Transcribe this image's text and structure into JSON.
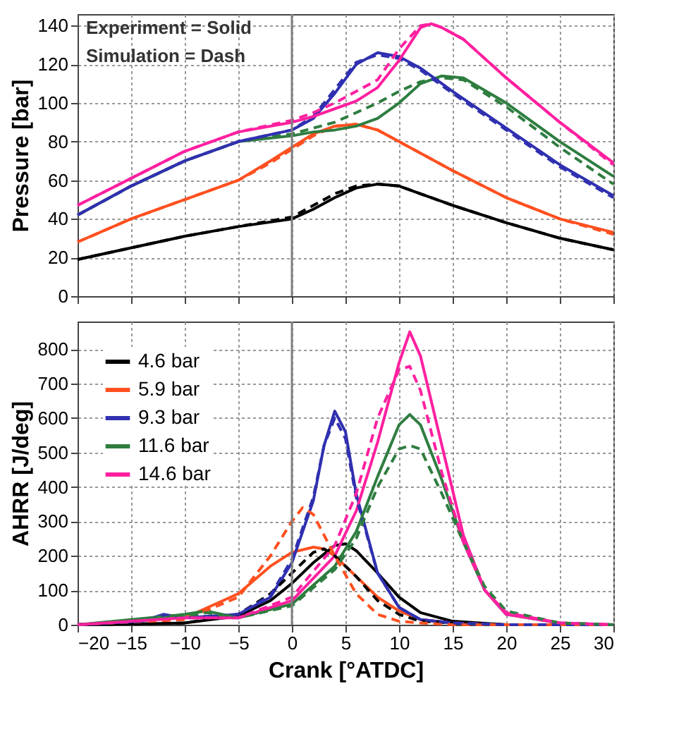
{
  "chart_data": [
    {
      "type": "line",
      "ylabel": "Pressure [bar]",
      "xlim": [
        -20,
        30
      ],
      "ylim": [
        0,
        146
      ],
      "xticks": [
        -20,
        -15,
        -10,
        -5,
        0,
        5,
        10,
        15,
        20,
        25,
        30
      ],
      "yticks": [
        0,
        20,
        40,
        60,
        80,
        100,
        120,
        140
      ],
      "grid": true,
      "tick_labels": "y",
      "legend": false,
      "annotations": [
        "Experiment = Solid",
        "Simulation = Dash"
      ],
      "ref_lines": [
        {
          "axis": "x",
          "value": 0,
          "color": "#808080"
        }
      ],
      "series": [
        {
          "color": "#000000",
          "line_style": "solid",
          "x": [
            -20,
            -15,
            -10,
            -5,
            0,
            2,
            4,
            6,
            8,
            10,
            12,
            15,
            20,
            25,
            30
          ],
          "values": [
            19,
            25,
            31,
            36,
            40,
            45,
            51,
            56,
            58,
            57,
            53,
            47,
            38,
            30,
            24
          ]
        },
        {
          "color": "#000000",
          "line_style": "dashed",
          "x": [
            -20,
            -15,
            -10,
            -5,
            0,
            2,
            4,
            6,
            8,
            10,
            12,
            15,
            20,
            25,
            30
          ],
          "values": [
            19,
            25,
            31,
            36,
            41,
            47,
            53,
            57,
            58,
            57,
            53,
            47,
            38,
            30,
            24
          ]
        },
        {
          "color": "#ff5020",
          "line_style": "solid",
          "x": [
            -20,
            -15,
            -10,
            -5,
            -2,
            0,
            2,
            4,
            6,
            8,
            10,
            12,
            15,
            20,
            25,
            30
          ],
          "values": [
            28,
            40,
            50,
            60,
            70,
            77,
            84,
            88,
            89,
            86,
            80,
            74,
            65,
            51,
            40,
            33
          ]
        },
        {
          "color": "#ff5020",
          "line_style": "dashed",
          "x": [
            -20,
            -15,
            -10,
            -5,
            -2,
            0,
            2,
            4,
            6,
            8,
            10,
            12,
            15,
            20,
            25,
            30
          ],
          "values": [
            28,
            40,
            50,
            60,
            69,
            76,
            83,
            88,
            89,
            86,
            80,
            74,
            65,
            51,
            40,
            32
          ]
        },
        {
          "color": "#2e7d40",
          "line_style": "solid",
          "x": [
            -20,
            -15,
            -10,
            -5,
            0,
            2,
            4,
            6,
            8,
            10,
            12,
            14,
            16,
            20,
            25,
            30
          ],
          "values": [
            42,
            57,
            70,
            80,
            83,
            85,
            86,
            88,
            92,
            100,
            110,
            114,
            113,
            100,
            80,
            62
          ]
        },
        {
          "color": "#2e7d40",
          "line_style": "dashed",
          "x": [
            -20,
            -15,
            -10,
            -5,
            0,
            2,
            4,
            6,
            8,
            10,
            12,
            14,
            16,
            20,
            25,
            30
          ],
          "values": [
            42,
            57,
            70,
            80,
            84,
            87,
            90,
            95,
            100,
            106,
            111,
            113,
            112,
            98,
            77,
            58
          ]
        },
        {
          "color": "#3030b0",
          "line_style": "solid",
          "x": [
            -20,
            -15,
            -10,
            -5,
            0,
            2,
            4,
            6,
            8,
            10,
            12,
            15,
            20,
            25,
            30
          ],
          "values": [
            42,
            57,
            70,
            80,
            86,
            92,
            105,
            120,
            126,
            124,
            118,
            106,
            87,
            68,
            52
          ]
        },
        {
          "color": "#3030b0",
          "line_style": "dashed",
          "x": [
            -20,
            -15,
            -10,
            -5,
            0,
            2,
            4,
            6,
            8,
            10,
            12,
            15,
            20,
            25,
            30
          ],
          "values": [
            42,
            57,
            70,
            80,
            86,
            93,
            107,
            121,
            125,
            123,
            117,
            105,
            86,
            67,
            51
          ]
        },
        {
          "color": "#ff20a0",
          "line_style": "solid",
          "x": [
            -20,
            -15,
            -10,
            -5,
            0,
            2,
            4,
            6,
            8,
            10,
            12,
            13,
            14,
            16,
            20,
            25,
            30
          ],
          "values": [
            47,
            61,
            75,
            85,
            90,
            93,
            97,
            101,
            108,
            122,
            139,
            141,
            139,
            133,
            113,
            90,
            69
          ]
        },
        {
          "color": "#ff20a0",
          "line_style": "dashed",
          "x": [
            -20,
            -15,
            -10,
            -5,
            0,
            2,
            4,
            6,
            8,
            10,
            12,
            13,
            14,
            16,
            20,
            25,
            30
          ],
          "values": [
            47,
            61,
            75,
            85,
            91,
            95,
            100,
            106,
            112,
            128,
            140,
            141,
            139,
            133,
            113,
            90,
            68
          ]
        }
      ]
    },
    {
      "type": "line",
      "xlabel": "Crank [°ATDC]",
      "ylabel": "AHRR [J/deg]",
      "xlim": [
        -20,
        30
      ],
      "ylim": [
        0,
        880
      ],
      "xticks": [
        -20,
        -15,
        -10,
        -5,
        0,
        5,
        10,
        15,
        20,
        25,
        30
      ],
      "yticks": [
        0,
        100,
        200,
        300,
        400,
        500,
        600,
        700,
        800
      ],
      "grid": true,
      "legend": "top left",
      "ref_lines": [
        {
          "axis": "x",
          "value": 0,
          "color": "#808080"
        }
      ],
      "series": [
        {
          "name": "4.6 bar",
          "color": "#000000",
          "line_style": "solid",
          "x": [
            -20,
            -10,
            -5,
            -2,
            0,
            2,
            4,
            5,
            6,
            8,
            10,
            12,
            15,
            20,
            30
          ],
          "values": [
            0,
            5,
            25,
            70,
            120,
            180,
            230,
            235,
            215,
            150,
            80,
            35,
            10,
            0,
            0
          ]
        },
        {
          "name": "5.9 bar",
          "color": "#ff5020",
          "line_style": "solid",
          "x": [
            -20,
            -10,
            -5,
            -2,
            0,
            2,
            3,
            4,
            6,
            8,
            10,
            12,
            15,
            20,
            30
          ],
          "values": [
            0,
            20,
            90,
            170,
            210,
            225,
            220,
            200,
            140,
            80,
            40,
            15,
            5,
            0,
            0
          ]
        },
        {
          "name": "9.3 bar",
          "color": "#3030b0",
          "line_style": "solid",
          "x": [
            -20,
            -14,
            -12,
            -10,
            -5,
            -2,
            0,
            2,
            3,
            4,
            5,
            6,
            8,
            10,
            12,
            15,
            20,
            30
          ],
          "values": [
            0,
            10,
            30,
            20,
            30,
            80,
            180,
            360,
            520,
            620,
            560,
            380,
            150,
            50,
            15,
            5,
            0,
            0
          ]
        },
        {
          "name": "11.6 bar",
          "color": "#2e7d40",
          "line_style": "solid",
          "x": [
            -20,
            -10,
            -8,
            -5,
            0,
            4,
            6,
            8,
            10,
            11,
            12,
            14,
            16,
            18,
            20,
            25,
            30
          ],
          "values": [
            0,
            30,
            40,
            20,
            60,
            170,
            270,
            430,
            580,
            610,
            580,
            420,
            240,
            100,
            30,
            5,
            0
          ]
        },
        {
          "name": "14.6 bar",
          "color": "#ff20a0",
          "line_style": "solid",
          "x": [
            -20,
            -10,
            -5,
            0,
            4,
            6,
            8,
            10,
            11,
            12,
            14,
            16,
            18,
            20,
            25,
            30
          ],
          "values": [
            0,
            20,
            20,
            70,
            200,
            330,
            530,
            760,
            850,
            780,
            520,
            260,
            100,
            30,
            5,
            0
          ]
        },
        {
          "color": "#000000",
          "line_style": "dashed",
          "x": [
            -20,
            -10,
            -5,
            -2,
            0,
            2,
            3,
            4,
            6,
            8,
            10,
            12,
            15,
            20,
            30
          ],
          "values": [
            0,
            5,
            30,
            90,
            150,
            210,
            220,
            200,
            140,
            70,
            30,
            10,
            5,
            0,
            0
          ]
        },
        {
          "color": "#ff5020",
          "line_style": "dashed",
          "x": [
            -20,
            -10,
            -5,
            -2,
            0,
            1,
            2,
            4,
            6,
            8,
            10,
            12,
            15,
            20,
            30
          ],
          "values": [
            0,
            15,
            80,
            200,
            300,
            340,
            320,
            200,
            90,
            30,
            10,
            5,
            0,
            0,
            0
          ]
        },
        {
          "color": "#3030b0",
          "line_style": "dashed",
          "x": [
            -20,
            -14,
            -12,
            -10,
            -5,
            -2,
            0,
            2,
            3,
            4,
            5,
            6,
            8,
            10,
            12,
            15,
            20,
            30
          ],
          "values": [
            0,
            10,
            25,
            20,
            30,
            85,
            190,
            370,
            520,
            600,
            540,
            370,
            150,
            50,
            15,
            5,
            0,
            0
          ]
        },
        {
          "color": "#2e7d40",
          "line_style": "dashed",
          "x": [
            -20,
            -10,
            -8,
            -5,
            0,
            4,
            6,
            8,
            10,
            11,
            12,
            14,
            16,
            18,
            20,
            25,
            30
          ],
          "values": [
            0,
            25,
            35,
            20,
            55,
            160,
            250,
            400,
            510,
            520,
            510,
            380,
            240,
            110,
            40,
            5,
            0
          ]
        },
        {
          "color": "#ff20a0",
          "line_style": "dashed",
          "x": [
            -20,
            -10,
            -5,
            0,
            4,
            6,
            8,
            10,
            11,
            12,
            14,
            16,
            18,
            20,
            25,
            30
          ],
          "values": [
            0,
            20,
            20,
            80,
            230,
            380,
            600,
            740,
            750,
            680,
            440,
            240,
            100,
            35,
            5,
            0
          ]
        }
      ]
    }
  ]
}
